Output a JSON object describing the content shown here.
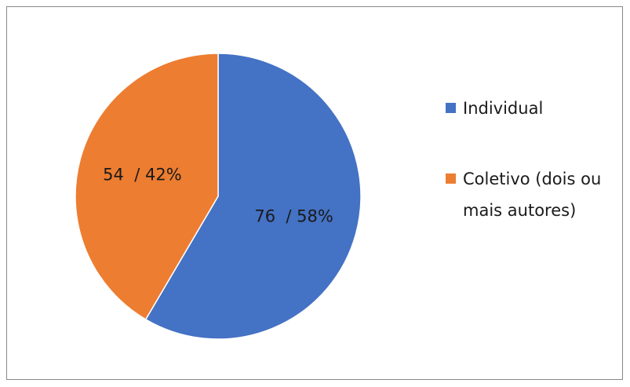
{
  "chart_data": {
    "type": "pie",
    "categories": [
      "Individual",
      "Coletivo (dois ou mais autores)"
    ],
    "values": [
      76,
      54
    ],
    "value_labels": [
      "76  / 58%",
      "54  / 42%"
    ],
    "colors": [
      "#4472c4",
      "#ed7d31"
    ],
    "legend": "right"
  }
}
